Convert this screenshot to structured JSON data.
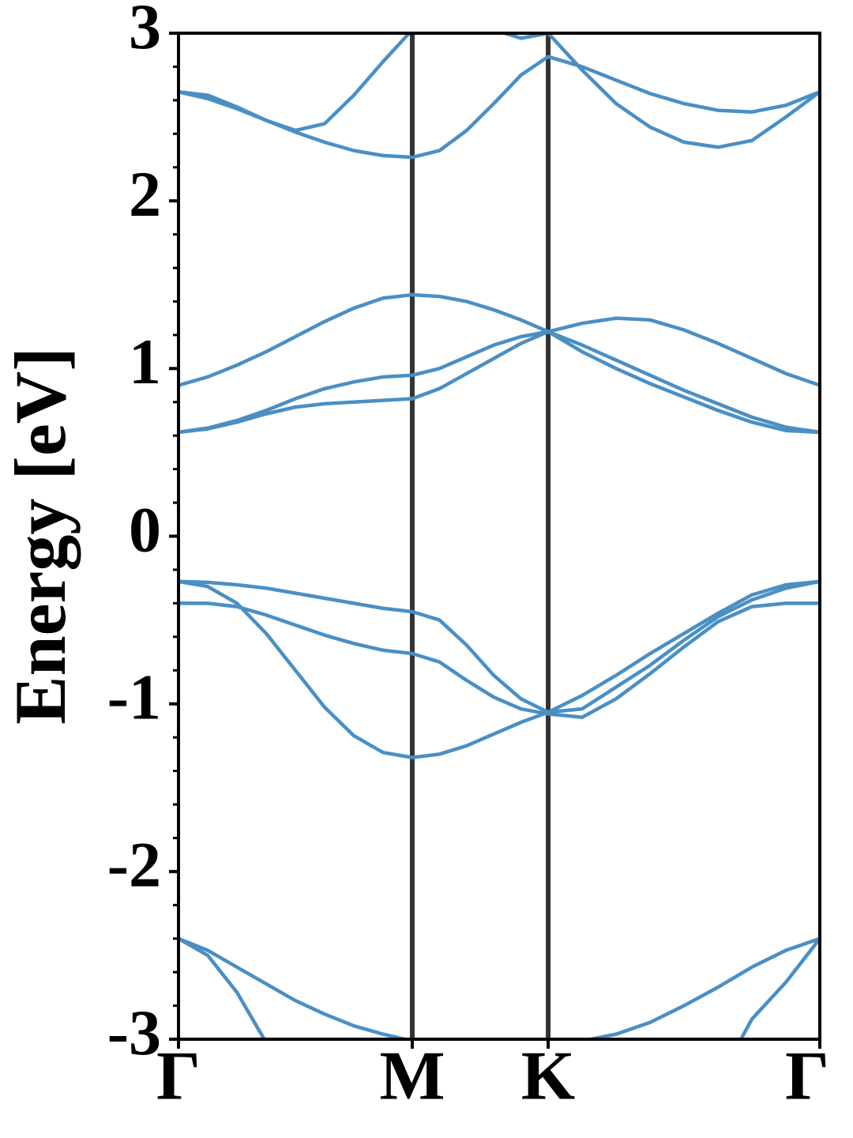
{
  "chart_data": {
    "type": "line",
    "y_label": "Energy [eV]",
    "color": "#4a8fc4",
    "x": [
      0,
      0.0456,
      0.0911,
      0.1367,
      0.1823,
      0.2278,
      0.2734,
      0.3189,
      0.3645,
      0.4069,
      0.4493,
      0.4916,
      0.534,
      0.5764,
      0.6294,
      0.6823,
      0.7353,
      0.7882,
      0.8412,
      0.8941,
      0.9471,
      1.0
    ],
    "series": [
      {
        "values": [
          -0.27,
          -0.275,
          -0.29,
          -0.31,
          -0.34,
          -0.37,
          -0.4,
          -0.43,
          -0.45,
          -0.5,
          -0.65,
          -0.83,
          -0.97,
          -1.05,
          -0.95,
          -0.83,
          -0.7,
          -0.58,
          -0.46,
          -0.35,
          -0.29,
          -0.27
        ]
      },
      {
        "values": [
          -0.27,
          -0.3,
          -0.4,
          -0.58,
          -0.8,
          -1.02,
          -1.19,
          -1.29,
          -1.32,
          -1.3,
          -1.25,
          -1.18,
          -1.11,
          -1.05,
          -1.03,
          -0.9,
          -0.77,
          -0.62,
          -0.48,
          -0.38,
          -0.31,
          -0.27
        ]
      },
      {
        "values": [
          -0.4,
          -0.4,
          -0.42,
          -0.47,
          -0.53,
          -0.59,
          -0.64,
          -0.68,
          -0.7,
          -0.75,
          -0.86,
          -0.96,
          -1.03,
          -1.06,
          -1.08,
          -0.97,
          -0.82,
          -0.66,
          -0.51,
          -0.42,
          -0.4,
          -0.4
        ]
      },
      {
        "values": [
          0.62,
          0.64,
          0.68,
          0.73,
          0.77,
          0.79,
          0.8,
          0.81,
          0.82,
          0.88,
          0.97,
          1.06,
          1.15,
          1.22,
          1.1,
          1.0,
          0.91,
          0.83,
          0.75,
          0.68,
          0.63,
          0.62
        ]
      },
      {
        "values": [
          0.62,
          0.645,
          0.69,
          0.75,
          0.82,
          0.88,
          0.92,
          0.95,
          0.96,
          1.0,
          1.07,
          1.14,
          1.19,
          1.22,
          1.14,
          1.05,
          0.96,
          0.87,
          0.79,
          0.71,
          0.65,
          0.62
        ]
      },
      {
        "values": [
          0.9,
          0.95,
          1.02,
          1.1,
          1.19,
          1.28,
          1.36,
          1.42,
          1.44,
          1.43,
          1.4,
          1.35,
          1.29,
          1.22,
          1.27,
          1.3,
          1.29,
          1.23,
          1.15,
          1.06,
          0.97,
          0.9
        ]
      },
      {
        "values": [
          2.65,
          2.61,
          2.55,
          2.48,
          2.41,
          2.35,
          2.3,
          2.27,
          2.26,
          2.3,
          2.42,
          2.58,
          2.75,
          2.86,
          2.8,
          2.72,
          2.64,
          2.58,
          2.54,
          2.53,
          2.57,
          2.65
        ]
      },
      {
        "values": [
          2.65,
          2.63,
          2.56,
          2.48,
          2.42,
          2.46,
          2.63,
          2.83,
          3.02,
          3.06,
          3.05,
          3.02,
          2.97,
          3.0,
          2.78,
          2.58,
          2.44,
          2.35,
          2.32,
          2.36,
          2.5,
          2.65
        ]
      },
      {
        "values": [
          -2.4,
          -2.47,
          -2.57,
          -2.67,
          -2.77,
          -2.85,
          -2.92,
          -2.97,
          -3.01,
          null,
          null,
          null,
          null,
          null,
          -3.01,
          -2.97,
          -2.9,
          -2.8,
          -2.69,
          -2.57,
          -2.47,
          -2.4
        ]
      },
      {
        "values": [
          -2.4,
          -2.5,
          -2.72,
          -3.02,
          -3.35,
          null,
          null,
          null,
          null,
          null,
          null,
          null,
          null,
          null,
          null,
          null,
          null,
          null,
          -3.25,
          -2.88,
          -2.66,
          -2.4
        ]
      }
    ],
    "xlim": [
      0,
      1
    ],
    "xticks": [
      {
        "value": 0,
        "label": "Γ"
      },
      {
        "value": 0.3645,
        "label": "M"
      },
      {
        "value": 0.5764,
        "label": "K"
      },
      {
        "value": 1.0,
        "label": "Γ"
      }
    ],
    "ylim": [
      -3,
      3
    ],
    "yticks": [
      -3,
      -2,
      -1,
      0,
      1,
      2,
      3
    ],
    "yminorticks": [
      -2.8,
      -2.6,
      -2.4,
      -2.2,
      -1.8,
      -1.6,
      -1.4,
      -1.2,
      -0.8,
      -0.6,
      -0.4,
      -0.2,
      0.2,
      0.4,
      0.6,
      0.8,
      1.2,
      1.4,
      1.6,
      1.8,
      2.2,
      2.4,
      2.6,
      2.8
    ]
  }
}
